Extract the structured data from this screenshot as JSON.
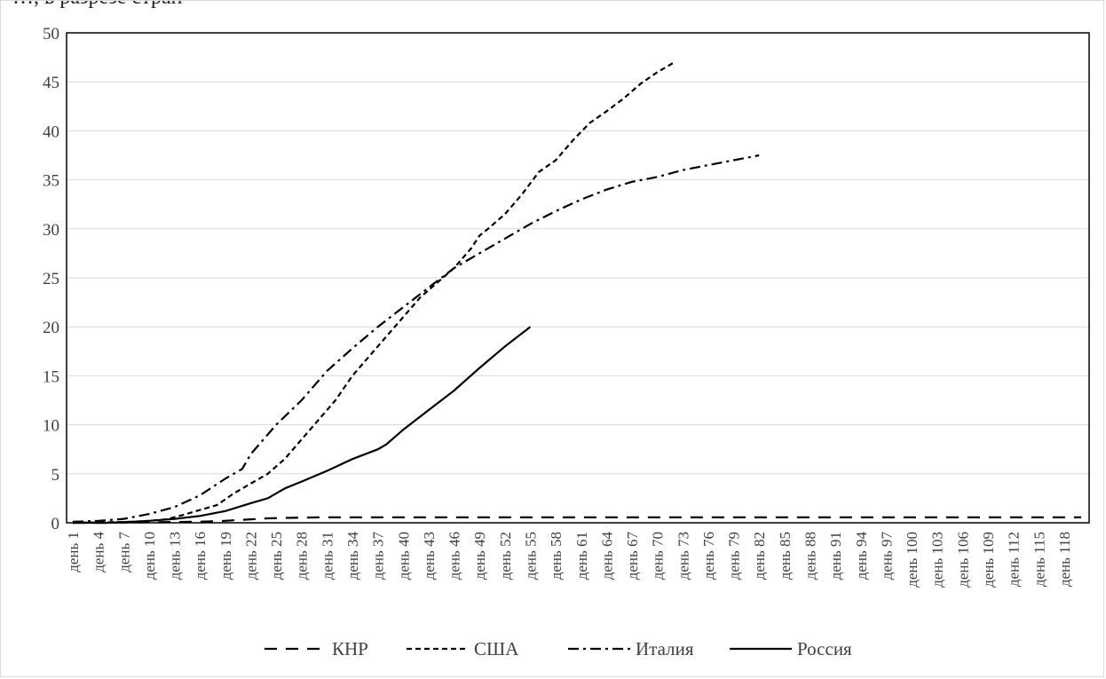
{
  "header_fragment": "…, в разрезе стран",
  "chart_data": {
    "type": "line",
    "title": "",
    "xlabel": "",
    "ylabel": "",
    "ylim": [
      0,
      50
    ],
    "yticks": [
      0,
      5,
      10,
      15,
      20,
      25,
      30,
      35,
      40,
      45,
      50
    ],
    "x_range": [
      1,
      120
    ],
    "xtick_labels": [
      "день 1",
      "день 4",
      "день 7",
      "день 10",
      "день 13",
      "день 16",
      "день 19",
      "день 22",
      "день 25",
      "день 28",
      "день 31",
      "день 34",
      "день 37",
      "день 40",
      "день 43",
      "день 46",
      "день 49",
      "день 52",
      "день 55",
      "день 58",
      "день 61",
      "день 64",
      "день 67",
      "день 70",
      "день 73",
      "день 76",
      "день 79",
      "день 82",
      "день 85",
      "день 88",
      "день 91",
      "день 94",
      "день 97",
      "день 100",
      "день 103",
      "день 106",
      "день 109",
      "день 112",
      "день 115",
      "день 118"
    ],
    "xtick_days": [
      1,
      4,
      7,
      10,
      13,
      16,
      19,
      22,
      25,
      28,
      31,
      34,
      37,
      40,
      43,
      46,
      49,
      52,
      55,
      58,
      61,
      64,
      67,
      70,
      73,
      76,
      79,
      82,
      85,
      88,
      91,
      94,
      97,
      100,
      103,
      106,
      109,
      112,
      115,
      118
    ],
    "grid": true,
    "legend_position": "bottom",
    "series": [
      {
        "name": "КНР",
        "dash": "14 10",
        "x": [
          1,
          5,
          10,
          15,
          18,
          20,
          21,
          22,
          23,
          24,
          26,
          30,
          40,
          60,
          80,
          100,
          120
        ],
        "y": [
          0,
          0,
          0.05,
          0.1,
          0.15,
          0.25,
          0.3,
          0.35,
          0.4,
          0.45,
          0.5,
          0.55,
          0.55,
          0.55,
          0.55,
          0.55,
          0.55
        ]
      },
      {
        "name": "США",
        "dash": "6 4",
        "x": [
          1,
          5,
          8,
          10,
          12,
          14,
          16,
          18,
          20,
          22,
          24,
          26,
          28,
          30,
          32,
          34,
          36,
          38,
          40,
          42,
          44,
          46,
          48,
          49,
          50,
          52,
          54,
          56,
          58,
          60,
          62,
          64,
          66,
          68,
          70,
          72
        ],
        "y": [
          0,
          0.05,
          0.1,
          0.2,
          0.35,
          0.8,
          1.3,
          1.8,
          3,
          4,
          5,
          6.5,
          8.5,
          10.5,
          12.5,
          15,
          17,
          19,
          21,
          23,
          24.5,
          26,
          28,
          29.3,
          30,
          31.5,
          33.5,
          35.8,
          37,
          39,
          40.8,
          42,
          43.3,
          44.8,
          46,
          47
        ]
      },
      {
        "name": "Италия",
        "dash": "12 5 3 5",
        "x": [
          1,
          4,
          7,
          10,
          13,
          16,
          19,
          21,
          22,
          25,
          28,
          31,
          34,
          37,
          40,
          43,
          46,
          49,
          52,
          55,
          58,
          61,
          64,
          67,
          70,
          73,
          76,
          79,
          82
        ],
        "y": [
          0.1,
          0.2,
          0.4,
          0.9,
          1.6,
          2.8,
          4.5,
          5.5,
          7,
          10,
          12.5,
          15.5,
          17.8,
          20,
          22,
          24,
          26,
          27.5,
          29,
          30.5,
          31.8,
          33,
          34,
          34.8,
          35.3,
          36,
          36.5,
          37,
          37.5
        ]
      },
      {
        "name": "Россия",
        "dash": "",
        "x": [
          1,
          5,
          8,
          10,
          13,
          16,
          19,
          22,
          24,
          25,
          26,
          28,
          31,
          34,
          37,
          38,
          40,
          43,
          46,
          49,
          52,
          55
        ],
        "y": [
          0,
          0,
          0.1,
          0.2,
          0.4,
          0.7,
          1.2,
          2,
          2.5,
          3,
          3.5,
          4.2,
          5.3,
          6.5,
          7.5,
          8,
          9.5,
          11.5,
          13.5,
          15.8,
          18,
          20
        ]
      }
    ]
  }
}
